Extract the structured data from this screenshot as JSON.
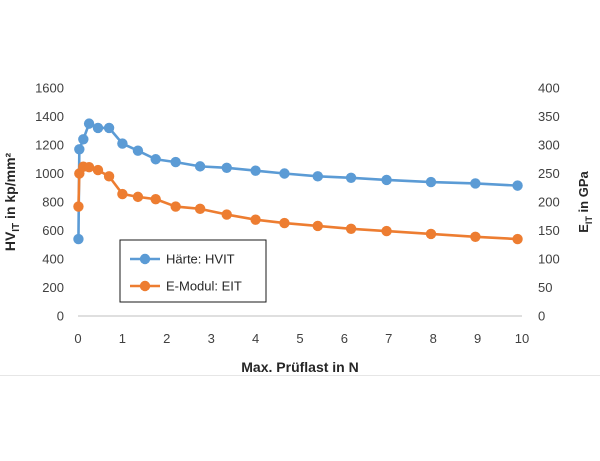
{
  "chart_data": {
    "type": "line",
    "xlabel": "Max. Prüflast in N",
    "ylabel_left_main": "HV",
    "ylabel_left_sub": "IT",
    "ylabel_left_rest": " in kp/mm²",
    "ylabel_right_main": "E",
    "ylabel_right_sub": "IT",
    "ylabel_right_rest": " in GPa",
    "xlim": [
      0,
      10
    ],
    "ylim_left": [
      0,
      1600
    ],
    "ylim_right": [
      0,
      400
    ],
    "x_ticks": [
      "0",
      "1",
      "2",
      "3",
      "4",
      "5",
      "6",
      "7",
      "8",
      "9",
      "10"
    ],
    "y_left_ticks": [
      "0",
      "200",
      "400",
      "600",
      "800",
      "1000",
      "1200",
      "1400",
      "1600"
    ],
    "y_right_ticks": [
      "0",
      "50",
      "100",
      "150",
      "200",
      "250",
      "300",
      "350",
      "400"
    ],
    "grid": false,
    "legend_position": "lower-left",
    "series": [
      {
        "name": "Härte: HVIT",
        "axis": "left",
        "color": "#5b9bd5",
        "x": [
          0.01,
          0.03,
          0.12,
          0.25,
          0.45,
          0.7,
          1.0,
          1.35,
          1.75,
          2.2,
          2.75,
          3.35,
          4.0,
          4.65,
          5.4,
          6.15,
          6.95,
          7.95,
          8.95,
          9.9
        ],
        "y": [
          540,
          1170,
          1240,
          1350,
          1320,
          1320,
          1210,
          1160,
          1100,
          1080,
          1050,
          1040,
          1020,
          1000,
          980,
          970,
          955,
          940,
          930,
          915
        ]
      },
      {
        "name": "E-Modul: EIT",
        "axis": "right",
        "color": "#ed7d31",
        "x": [
          0.01,
          0.03,
          0.12,
          0.25,
          0.45,
          0.7,
          1.0,
          1.35,
          1.75,
          2.2,
          2.75,
          3.35,
          4.0,
          4.65,
          5.4,
          6.15,
          6.95,
          7.95,
          8.95,
          9.9
        ],
        "y": [
          192,
          250,
          262,
          261,
          256,
          245,
          214,
          209,
          205,
          192,
          188,
          178,
          169,
          163,
          158,
          153,
          149,
          144,
          139,
          135
        ]
      }
    ]
  }
}
